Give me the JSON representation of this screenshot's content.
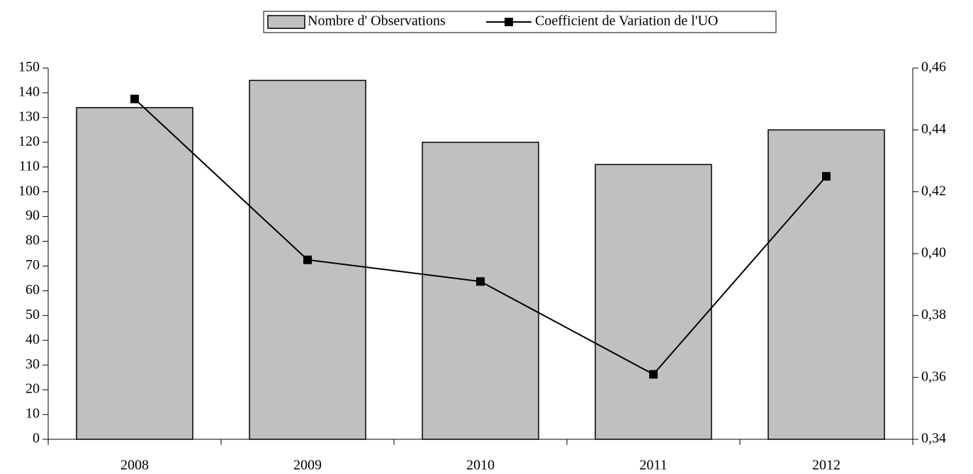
{
  "chart_data": {
    "type": "bar",
    "categories": [
      "2008",
      "2009",
      "2010",
      "2011",
      "2012"
    ],
    "series": [
      {
        "name": "Nombre d' Observations",
        "type": "bar",
        "color": "#c0c0c0",
        "values": [
          134,
          145,
          120,
          111,
          125
        ]
      },
      {
        "name": "Coefficient de Variation de l'UO",
        "type": "line",
        "axis": "y2",
        "color": "#000000",
        "values": [
          0.45,
          0.398,
          0.391,
          0.361,
          0.425
        ]
      }
    ],
    "ylim": [
      0,
      150
    ],
    "yticks": [
      0,
      10,
      20,
      30,
      40,
      50,
      60,
      70,
      80,
      90,
      100,
      110,
      120,
      130,
      140,
      150
    ],
    "y2lim": [
      0.34,
      0.46
    ],
    "y2ticks": [
      {
        "value": 0.34,
        "label": "0,34"
      },
      {
        "value": 0.36,
        "label": "0,36"
      },
      {
        "value": 0.38,
        "label": "0,38"
      },
      {
        "value": 0.4,
        "label": "0,40"
      },
      {
        "value": 0.42,
        "label": "0,42"
      },
      {
        "value": 0.44,
        "label": "0,44"
      },
      {
        "value": 0.46,
        "label": "0,46"
      }
    ],
    "legend": "top"
  }
}
